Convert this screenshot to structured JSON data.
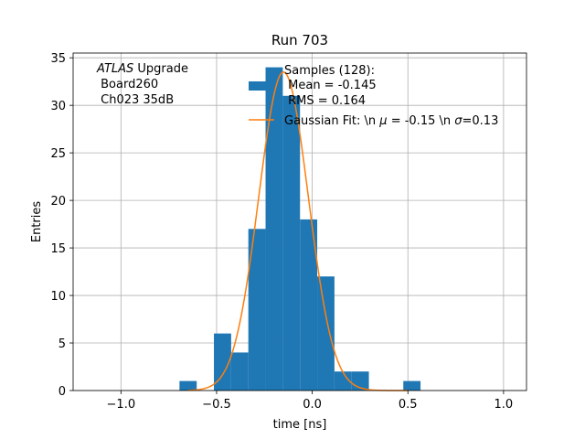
{
  "chart_data": {
    "type": "bar",
    "title": "Run 703",
    "xlabel": "time [ns]",
    "ylabel": "Entries",
    "xlim": [
      -1.25,
      1.12
    ],
    "ylim": [
      0,
      35.5
    ],
    "xticks": [
      -1.0,
      -0.5,
      0.0,
      0.5,
      1.0
    ],
    "xtick_labels": [
      "−1.0",
      "−0.5",
      "0.0",
      "0.5",
      "1.0"
    ],
    "yticks": [
      0,
      5,
      10,
      15,
      20,
      25,
      30,
      35
    ],
    "ytick_labels": [
      "0",
      "5",
      "10",
      "15",
      "20",
      "25",
      "30",
      "35"
    ],
    "grid": true,
    "histogram": {
      "name": "Samples (128):",
      "bin_edges": [
        -0.694,
        -0.604,
        -0.514,
        -0.424,
        -0.334,
        -0.244,
        -0.154,
        -0.064,
        0.026,
        0.116,
        0.206,
        0.296,
        0.386,
        0.476,
        0.566
      ],
      "counts": [
        1,
        0,
        6,
        4,
        17,
        34,
        31,
        18,
        12,
        2,
        2,
        0,
        0,
        1
      ],
      "color": "#1f77b4"
    },
    "fit": {
      "name": "Gaussian Fit: \\n $\\mu$ = -0.15 \\n $\\sigma$=0.13",
      "type": "gaussian",
      "mu": -0.15,
      "sigma": 0.13,
      "amplitude": 33.5,
      "x_range": [
        -0.65,
        0.5
      ],
      "color": "#ff7f0e"
    },
    "legend": {
      "placement": "top-right",
      "samples_lines": [
        "Samples (128):",
        " Mean = -0.145",
        " RMS = 0.164"
      ],
      "fit_label_prefix": "Gaussian Fit: \\n ",
      "fit_label_mu": "μ",
      "fit_label_mid": " = -0.15 \\n ",
      "fit_label_sigma": "σ",
      "fit_label_suffix": "=0.13"
    },
    "annotation": {
      "lines_italic": "ATLAS",
      "line1_rest": " Upgrade",
      "line2": " Board260",
      "line3": " Ch023 35dB"
    }
  }
}
